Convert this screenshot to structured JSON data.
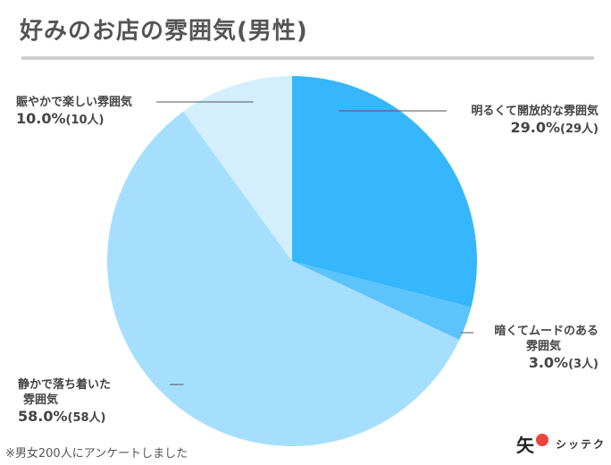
{
  "page": {
    "title": "好みのお店の雰囲気(男性)",
    "footnote": "※男女200人にアンケートしました",
    "brand_mark": "矢",
    "brand_name": "シッテク",
    "colors": {
      "title_rule": "#cfcfcf",
      "brand_dot": "#e8453c"
    }
  },
  "chart_data": {
    "type": "pie",
    "title": "好みのお店の雰囲気(男性)",
    "slices": [
      {
        "label": "明るくて開放的な雰囲気",
        "value": 29.0,
        "count": 29,
        "percent_text": "29.0%",
        "count_text": "(29人)",
        "color": "#35b6fd"
      },
      {
        "label": "暗くてムードのある雰囲気",
        "value": 3.0,
        "count": 3,
        "percent_text": "3.0%",
        "count_text": "(3人)",
        "color": "#5cc3fb"
      },
      {
        "label": "静かで落ち着いた雰囲気",
        "value": 58.0,
        "count": 58,
        "percent_text": "58.0%",
        "count_text": "(58人)",
        "color": "#a6dffd"
      },
      {
        "label": "賑やかで楽しい雰囲気",
        "value": 10.0,
        "count": 10,
        "percent_text": "10.0%",
        "count_text": "(10人)",
        "color": "#d3effe"
      }
    ],
    "labels": [
      {
        "line1": "明るくて開放的な雰囲気",
        "line2": ""
      },
      {
        "line1": "暗くてムードのある",
        "line2": "雰囲気"
      },
      {
        "line1": "静かで落ち着いた",
        "line2": "雰囲気"
      },
      {
        "line1": "賑やかで楽しい雰囲気",
        "line2": ""
      }
    ]
  }
}
